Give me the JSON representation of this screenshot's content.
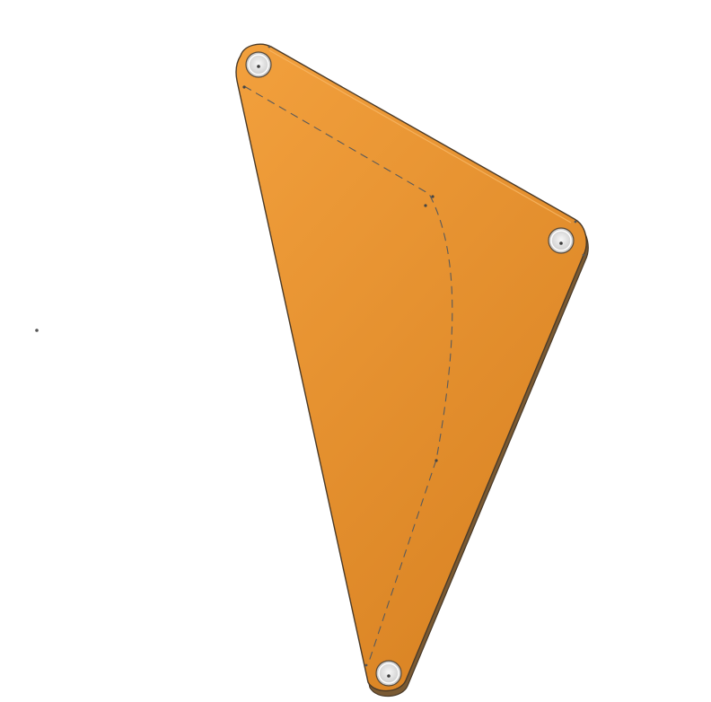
{
  "viewport": {
    "background_color": "#ffffff"
  },
  "plate": {
    "shape": "triangle with rounded corners",
    "fill_top_color": "#f2a03d",
    "fill_bottom_color": "#da8424",
    "edge_color": "#4a3a28",
    "side_color": "#7a5a33",
    "hole_count": 3,
    "hole_ring_color": "#ffffff",
    "hole_fill_color": "#e6e6e6",
    "hole_center_color": "#3a3a3a"
  },
  "sketch": {
    "line_style": "dashed",
    "line_color": "#5a5a5a",
    "vertex_markers": 4
  },
  "origin_marker": {
    "color": "#555555"
  }
}
